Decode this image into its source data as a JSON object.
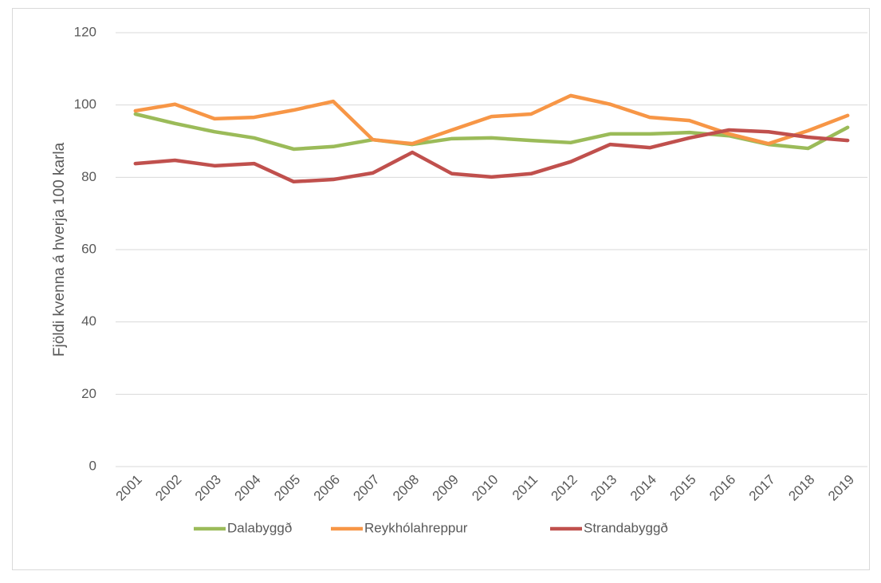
{
  "chart_data": {
    "type": "line",
    "y_label": "Fjöldi kvenna á hverja 100 karla",
    "categories": [
      "2001",
      "2002",
      "2003",
      "2004",
      "2005",
      "2006",
      "2007",
      "2008",
      "2009",
      "2010",
      "2011",
      "2012",
      "2013",
      "2014",
      "2015",
      "2016",
      "2017",
      "2018",
      "2019"
    ],
    "series": [
      {
        "name": "Dalabyggð",
        "color": "#9bbb59",
        "values": [
          97.5,
          94.9,
          92.6,
          90.9,
          87.8,
          88.5,
          90.4,
          89.1,
          90.7,
          90.9,
          90.2,
          89.6,
          92.0,
          92.0,
          92.4,
          91.5,
          89.1,
          88.0,
          93.8
        ]
      },
      {
        "name": "Reykhólahreppur",
        "color": "#f79646",
        "values": [
          98.4,
          100.2,
          96.2,
          96.6,
          98.6,
          101.0,
          90.4,
          89.3,
          93.1,
          96.8,
          97.5,
          102.6,
          100.2,
          96.6,
          95.7,
          92.0,
          89.3,
          92.9,
          97.1
        ]
      },
      {
        "name": "Strandabyggð",
        "color": "#c0504d",
        "values": [
          83.8,
          84.7,
          83.2,
          83.8,
          78.8,
          79.4,
          81.2,
          86.9,
          81.0,
          80.1,
          81.0,
          84.3,
          89.1,
          88.2,
          90.9,
          93.1,
          92.6,
          91.1,
          90.2
        ]
      }
    ],
    "ylim": [
      0,
      120
    ],
    "yticks": [
      0,
      20,
      40,
      60,
      80,
      100,
      120
    ],
    "grid": true,
    "legend": "bottom"
  }
}
